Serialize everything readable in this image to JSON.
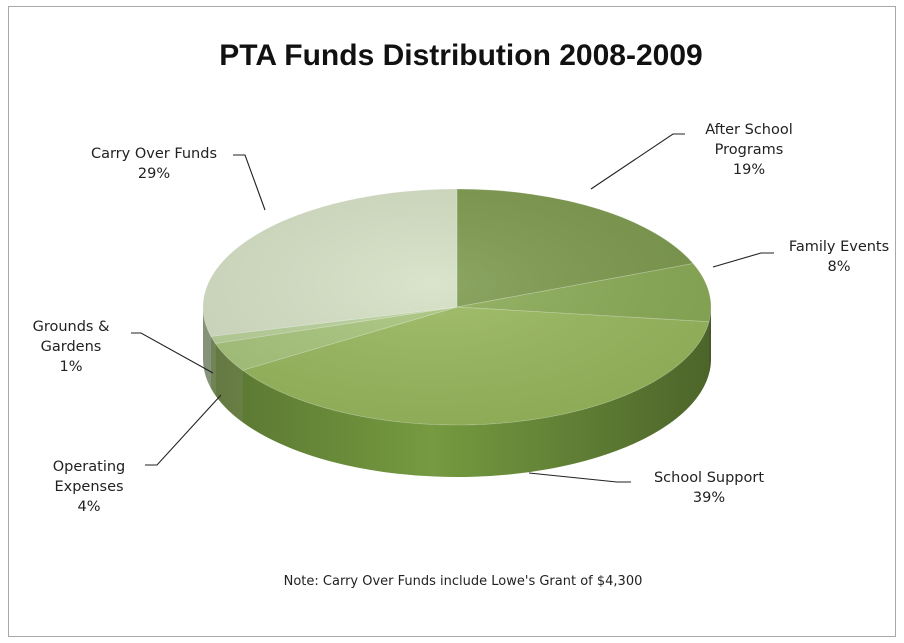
{
  "chart_data": {
    "type": "pie",
    "title": "PTA Funds Distribution 2008-2009",
    "categories": [
      "After School Programs",
      "Family Events",
      "School Support",
      "Operating Expenses",
      "Grounds & Gardens",
      "Carry Over Funds"
    ],
    "values": [
      19,
      8,
      39,
      4,
      1,
      29
    ],
    "labels": [
      {
        "lines": [
          "After School",
          "Programs",
          "19%"
        ]
      },
      {
        "lines": [
          "Family Events",
          "8%"
        ]
      },
      {
        "lines": [
          "School Support",
          "39%"
        ]
      },
      {
        "lines": [
          "Operating",
          "Expenses",
          "4%"
        ]
      },
      {
        "lines": [
          "Grounds &",
          "Gardens",
          "1%"
        ]
      },
      {
        "lines": [
          "Carry Over Funds",
          "29%"
        ]
      }
    ],
    "colors": [
      "#7d9a4e",
      "#8aab55",
      "#98b85d",
      "#a8c57c",
      "#b8d199",
      "#d5e0c4"
    ],
    "side_colors": [
      "#5e7838",
      "#6a883f",
      "#759a40",
      "#849f57",
      "#93ae70",
      "#b2c1a2"
    ],
    "legend": "none",
    "style": "3d-pie"
  },
  "note": "Note: Carry Over Funds include  Lowe's Grant of $4,300"
}
